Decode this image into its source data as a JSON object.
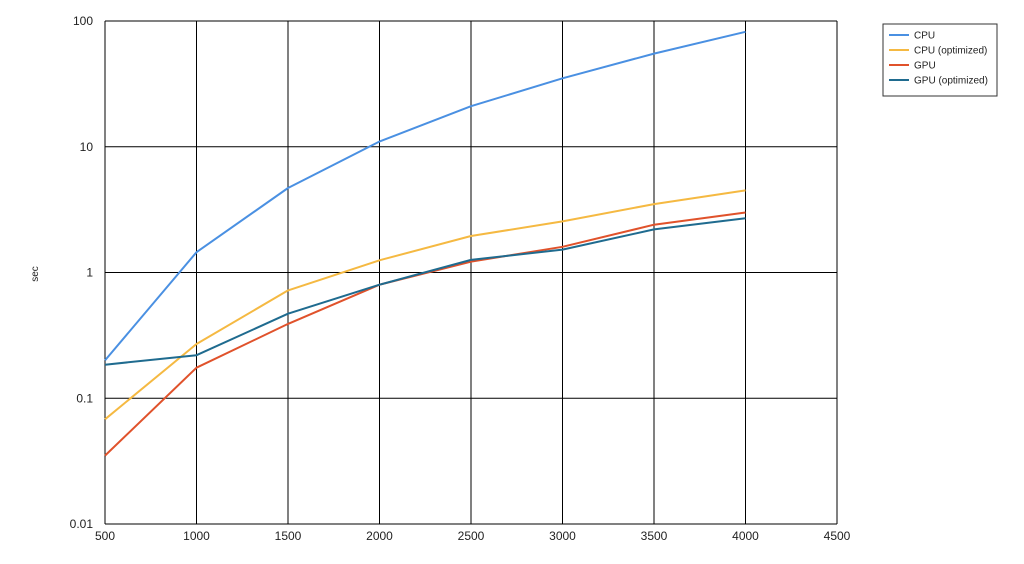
{
  "chart_data": {
    "type": "line",
    "xlabel": "",
    "ylabel": "sec",
    "x_ticks": [
      "500",
      "1000",
      "1500",
      "2000",
      "2500",
      "3000",
      "3500",
      "4000",
      "4500"
    ],
    "y_ticks": [
      "0.01",
      "0.1",
      "1",
      "10",
      "100"
    ],
    "xlim": [
      500,
      4500
    ],
    "ylim": [
      0.01,
      100
    ],
    "y_scale": "log",
    "grid": true,
    "legend_position": "top-right",
    "x": [
      500,
      1000,
      1500,
      2000,
      2500,
      3000,
      3500,
      4000
    ],
    "series": [
      {
        "name": "CPU",
        "color": "#4a90e2",
        "values": [
          0.2,
          1.45,
          4.7,
          11,
          21,
          35,
          55,
          82
        ]
      },
      {
        "name": "CPU (optimized)",
        "color": "#f5b942",
        "values": [
          0.068,
          0.27,
          0.72,
          1.25,
          1.95,
          2.55,
          3.5,
          4.5
        ]
      },
      {
        "name": "GPU",
        "color": "#e0522b",
        "values": [
          0.035,
          0.175,
          0.39,
          0.8,
          1.22,
          1.6,
          2.4,
          3.0
        ]
      },
      {
        "name": "GPU (optimized)",
        "color": "#1f6b8f",
        "values": [
          0.185,
          0.22,
          0.47,
          0.8,
          1.26,
          1.52,
          2.2,
          2.7
        ]
      }
    ]
  }
}
